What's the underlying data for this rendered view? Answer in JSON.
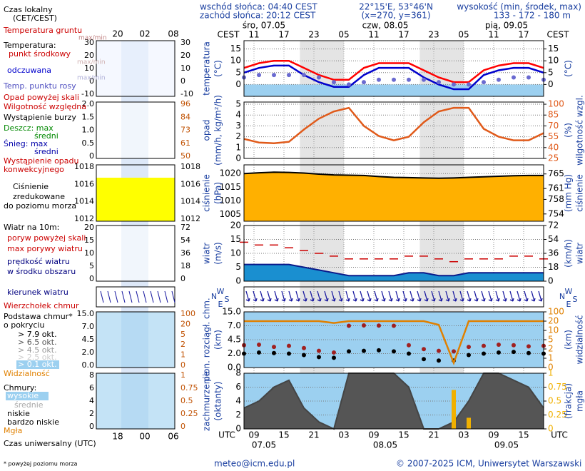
{
  "header": {
    "sunrise": "wschód słońca: 04:40 CEST",
    "sunset": "zachód słońca: 20:12 CEST",
    "coords": "22°15'E, 53°46'N",
    "grid": "(x=270, y=361)",
    "height_label": "wysokość (min, środek, max)",
    "height_values": "133 - 172 - 180 m"
  },
  "time_axis": {
    "xlim": [
      9,
      69
    ],
    "local_zone": "CEST",
    "utc_zone": "UTC",
    "local_dates": [
      "śro, 07.05",
      "czw, 08.05",
      "pią, 09.05"
    ],
    "utc_dates": [
      "07.05",
      "08.05",
      "09.05"
    ],
    "local_ticks": [
      {
        "value": 11,
        "label": "11"
      },
      {
        "value": 17,
        "label": "17"
      },
      {
        "value": 23,
        "label": "23"
      },
      {
        "value": 29,
        "label": "05"
      },
      {
        "value": 35,
        "label": "11"
      },
      {
        "value": 41,
        "label": "17"
      },
      {
        "value": 47,
        "label": "23"
      },
      {
        "value": 53,
        "label": "05"
      },
      {
        "value": 59,
        "label": "11"
      },
      {
        "value": 65,
        "label": "17"
      }
    ],
    "utc_ticks": [
      {
        "value": 11,
        "label": "09"
      },
      {
        "value": 17,
        "label": "15"
      },
      {
        "value": 23,
        "label": "21"
      },
      {
        "value": 29,
        "label": "03"
      },
      {
        "value": 35,
        "label": "09"
      },
      {
        "value": 41,
        "label": "15"
      },
      {
        "value": 47,
        "label": "21"
      },
      {
        "value": 53,
        "label": "03"
      },
      {
        "value": 59,
        "label": "09"
      },
      {
        "value": 65,
        "label": "15"
      }
    ],
    "nights": [
      [
        20.2,
        29
      ],
      [
        44.2,
        53
      ]
    ],
    "hours": [
      9,
      12,
      15,
      18,
      21,
      24,
      27,
      30,
      33,
      36,
      39,
      42,
      45,
      48,
      51,
      54,
      57,
      60,
      63,
      66,
      69
    ]
  },
  "panels": [
    {
      "name": "temperature",
      "left_label": [
        "temperatura",
        "(°C)"
      ],
      "right_label": [
        "(°C)"
      ],
      "ylim": [
        -5,
        18.5
      ],
      "yticks": [
        0,
        5,
        10,
        15
      ],
      "y2lim": [
        -5,
        18.5
      ],
      "y2ticks": [
        0,
        5,
        10,
        15
      ],
      "series": [
        {
          "name": "temperatura",
          "color": "#ff0000",
          "style": "line",
          "values": [
            7,
            9,
            10,
            10,
            7,
            4,
            2,
            2,
            7,
            9,
            9,
            9,
            6,
            3,
            1,
            1,
            6,
            8,
            9,
            9,
            7
          ]
        },
        {
          "name": "odczuwana",
          "color": "#0000cc",
          "style": "line",
          "values": [
            5,
            7,
            8,
            8,
            4,
            1,
            -1,
            -1,
            4,
            7,
            7,
            7,
            3,
            0,
            -2,
            -2,
            4,
            6,
            7,
            7,
            5
          ]
        },
        {
          "name": "punkt rosy",
          "color": "#6a6ad0",
          "style": "dots",
          "values": [
            3,
            4,
            4,
            4,
            4,
            3,
            1,
            0,
            1,
            2,
            2,
            2,
            2,
            1,
            0,
            0,
            1,
            2,
            3,
            3,
            2
          ]
        }
      ]
    },
    {
      "name": "precipitation",
      "left_label": [
        "opad",
        "(mm/h, kg/m²/h)"
      ],
      "right_label": [
        "(%)",
        "wilgotność wzgl."
      ],
      "ylim": [
        0,
        5.2
      ],
      "yticks": [
        0,
        1,
        2,
        3,
        4,
        5
      ],
      "y2lim": [
        25,
        103
      ],
      "y2ticks": [
        25,
        40,
        55,
        70,
        85,
        100
      ],
      "series": [
        {
          "name": "wilgotność",
          "color": "#e05a1a",
          "style": "line",
          "axis": "y2",
          "values": [
            52,
            47,
            46,
            48,
            65,
            80,
            90,
            95,
            70,
            56,
            50,
            55,
            75,
            90,
            95,
            95,
            66,
            55,
            50,
            50,
            60
          ]
        }
      ]
    },
    {
      "name": "pressure",
      "left_label": [
        "ciśnienie",
        "(hPa)"
      ],
      "right_label": [
        "(mm Hg)",
        "ciśnienie"
      ],
      "ylim": [
        1002.5,
        1023.2
      ],
      "yticks": [
        1005,
        1010,
        1015,
        1020
      ],
      "y2lim": [
        752,
        767.5
      ],
      "y2ticks": [
        754,
        758,
        761,
        765
      ],
      "series": [
        {
          "name": "ciśnienie",
          "color": "#000000",
          "style": "area",
          "fill": "#ffb000",
          "values": [
            1020,
            1020.3,
            1020.5,
            1020.4,
            1020.2,
            1019.8,
            1019.5,
            1019.4,
            1019.3,
            1018.9,
            1018.6,
            1018.5,
            1018.4,
            1018.3,
            1018.4,
            1018.6,
            1018.8,
            1019,
            1019.2,
            1019.3,
            1019.3
          ]
        }
      ]
    },
    {
      "name": "wind",
      "left_label": [
        "wiatr",
        "(m/s)"
      ],
      "right_label": [
        "(km/h)",
        "wiatr"
      ],
      "ylim": [
        0,
        20
      ],
      "yticks": [
        0,
        5,
        10,
        15,
        20
      ],
      "y2lim": [
        0,
        72
      ],
      "y2ticks": [
        0,
        18,
        36,
        54,
        72
      ],
      "series": [
        {
          "name": "prędkość",
          "color": "#0a1a8a",
          "style": "area",
          "fill": "#1a8fd0",
          "values": [
            6,
            6,
            6,
            6,
            5,
            4,
            3,
            2,
            2,
            2,
            2,
            3,
            3,
            2,
            2,
            3,
            3,
            3,
            3,
            3,
            3
          ]
        },
        {
          "name": "porywy",
          "color": "#cc0000",
          "style": "dashes",
          "values": [
            14,
            13,
            13,
            12,
            11,
            10,
            9,
            8,
            8,
            8,
            8,
            9,
            9,
            8,
            7,
            8,
            8,
            8,
            9,
            9,
            8
          ]
        }
      ]
    },
    {
      "name": "direction",
      "left_label": [
        "W",
        "N",
        "S",
        "E"
      ],
      "right_label": [
        "W",
        "N",
        "S",
        "E"
      ]
    },
    {
      "name": "clouds",
      "piecewise": true,
      "left_label": [
        "pion. rozciągł. chm.",
        "(km)"
      ],
      "right_label": [
        "(km)",
        "widzialność"
      ],
      "ylim": [
        0,
        15
      ],
      "yticks": [
        {
          "value": 0,
          "label": "0.0"
        },
        {
          "value": 2,
          "label": "2.0"
        },
        {
          "value": 4.5,
          "label": "4.5"
        },
        {
          "value": 7,
          "label": "7.0"
        },
        {
          "value": 15,
          "label": "15.0"
        }
      ],
      "y2lim": [
        0,
        100
      ],
      "y2ticks": [
        0,
        1,
        2,
        5,
        10,
        20,
        100
      ],
      "series": [
        {
          "name": "wierzchołek",
          "color": "#a02020",
          "style": "dots",
          "values": [
            3.5,
            3.6,
            3.2,
            3.4,
            3,
            2.5,
            2.2,
            7,
            7.2,
            7.1,
            7,
            3.5,
            2.8,
            2.5,
            2.4,
            3.2,
            3.4,
            3.6,
            3.5,
            3.3,
            3.4
          ]
        },
        {
          "name": "podstawa",
          "color": "#000000",
          "style": "dots",
          "values": [
            2,
            2.2,
            2.1,
            2,
            1.8,
            1.5,
            1.4,
            2.4,
            2.5,
            2.6,
            2.4,
            2,
            1.2,
            1,
            1,
            1.8,
            2,
            2.2,
            2.3,
            2.1,
            2
          ]
        },
        {
          "name": "widzialność",
          "color": "#e08000",
          "style": "line",
          "axis": "y2",
          "values": [
            20,
            20,
            20,
            20,
            20,
            20,
            18,
            20,
            20,
            20,
            20,
            20,
            20,
            16,
            0.5,
            20,
            20,
            20,
            20,
            20,
            20
          ]
        }
      ]
    },
    {
      "name": "cover",
      "left_label": [
        "zachmurzenie",
        "(oktanty)"
      ],
      "right_label": [
        "(frakcja)",
        "mgła"
      ],
      "ylim": [
        0,
        8
      ],
      "yticks": [
        0,
        2,
        4,
        6,
        8
      ],
      "y2lim": [
        0,
        1
      ],
      "y2ticks": [
        0,
        0.25,
        0.5,
        0.75,
        1
      ],
      "series": [
        {
          "name": "zachmurzenie",
          "color": "#444444",
          "style": "area",
          "fill": "#555555",
          "values": [
            3,
            4,
            6,
            7,
            3,
            1,
            0,
            8,
            8,
            8,
            8,
            6,
            0,
            0,
            1,
            4,
            8,
            8,
            7,
            6,
            3
          ]
        },
        {
          "name": "mgła",
          "color": "#f0b000",
          "style": "bars",
          "axis": "y2",
          "values": [
            0,
            0,
            0,
            0,
            0,
            0,
            0,
            0,
            0,
            0,
            0,
            0,
            0,
            0,
            0.7,
            0.2,
            0,
            0,
            0,
            0,
            0
          ]
        }
      ]
    }
  ],
  "mini": {
    "top_ticks": [
      "20",
      "02",
      "08"
    ],
    "bottom_ticks": [
      "18",
      "00",
      "06"
    ],
    "panels": [
      {
        "left": [
          "30",
          "20",
          "10",
          "0",
          "-10"
        ],
        "right": [
          "30",
          "20",
          "10",
          "0",
          "-10"
        ]
      },
      {
        "left": [
          "2.0",
          "1.5",
          "1.0",
          "0.5",
          "0"
        ],
        "right": [
          "96",
          "84",
          "73",
          "61",
          "50"
        ]
      },
      {
        "left": [
          "1018",
          "1016",
          "1014",
          "1012"
        ],
        "right": [
          "1018",
          "1016",
          "1014",
          "1012"
        ]
      },
      {
        "left": [
          "20",
          "15",
          "10",
          "5",
          "0"
        ],
        "right": [
          "72",
          "54",
          "36",
          "18",
          "0"
        ]
      },
      null,
      {
        "left": [
          "15.0",
          "7.0",
          "4.5",
          "2.0",
          "0.0"
        ],
        "right": [
          "100",
          "20",
          "5",
          "2",
          "1",
          "0"
        ]
      },
      {
        "left": [
          "8",
          "6",
          "4",
          "2",
          "0"
        ],
        "right": [
          "1",
          "0.75",
          "0.5",
          "0.25",
          "0"
        ]
      }
    ]
  },
  "legend": [
    {
      "text": "Czas lokalny",
      "color": "#000"
    },
    {
      "text": "(CET/CEST)",
      "color": "#000"
    },
    {
      "text": "Temperatura gruntu",
      "color": "#cc0000"
    },
    {
      "text": "max/min",
      "color": "#c08080"
    },
    {
      "text": "Temperatura:",
      "color": "#000"
    },
    {
      "text": "punkt środkowy",
      "color": "#cc0000"
    },
    {
      "text": "max/min",
      "color": "#d0b0b0"
    },
    {
      "text": "odczuwana",
      "color": "#0000cc"
    },
    {
      "text": "max/min",
      "color": "#b0b0d8"
    },
    {
      "text": "Temp. punktu rosy",
      "color": "#5050c0"
    },
    {
      "text": "Opad powyżej skali",
      "color": "#cc0000"
    },
    {
      "text": "Wilgotność względna",
      "color": "#cc0000"
    },
    {
      "text": "Wystąpienie burzy",
      "color": "#000"
    },
    {
      "text": "Deszcz: max",
      "color": "#008800"
    },
    {
      "text": "średni",
      "color": "#008800"
    },
    {
      "text": "Śnieg: max",
      "color": "#0000aa"
    },
    {
      "text": "średni",
      "color": "#0000aa"
    },
    {
      "text": "Wystąpienie opadu",
      "color": "#cc0000"
    },
    {
      "text": "konwekcyjnego",
      "color": "#cc0000"
    },
    {
      "text": "Ciśnienie",
      "color": "#000"
    },
    {
      "text": "zredukowane",
      "color": "#000"
    },
    {
      "text": "do poziomu morza",
      "color": "#000"
    },
    {
      "text": "Wiatr na 10m:",
      "color": "#000"
    },
    {
      "text": "poryw powyżej skali",
      "color": "#cc0000"
    },
    {
      "text": "max porywy wiatru",
      "color": "#cc0000"
    },
    {
      "text": "prędkość wiatru",
      "color": "#000080"
    },
    {
      "text": "w środku obszaru",
      "color": "#000080"
    },
    {
      "text": "kierunek wiatru",
      "color": "#000080"
    },
    {
      "text": "Wierzchołek chmur",
      "color": "#cc0000"
    },
    {
      "text": "Podstawa chmur*",
      "color": "#000"
    },
    {
      "text": "o pokryciu",
      "color": "#000"
    },
    {
      "text": "> 7.9 okt.",
      "color": "#000"
    },
    {
      "text": "> 6.5 okt.",
      "color": "#555"
    },
    {
      "text": "> 4.5 okt.",
      "color": "#999"
    },
    {
      "text": "> 2.5 okt.",
      "color": "#ccc"
    },
    {
      "text": "> 0.1 okt.",
      "color": "#fff"
    },
    {
      "text": "Widzialność",
      "color": "#e08000"
    },
    {
      "text": "Chmury:",
      "color": "#000"
    },
    {
      "text": "wysokie",
      "color": "#fff"
    },
    {
      "text": "średnie",
      "color": "#aaa"
    },
    {
      "text": "niskie",
      "color": "#000"
    },
    {
      "text": "bardzo niskie",
      "color": "#000"
    },
    {
      "text": "Mgła",
      "color": "#e08000"
    },
    {
      "text": "Czas uniwersalny (UTC)",
      "color": "#000"
    }
  ],
  "footer": {
    "note": "* powyżej poziomu morza",
    "email": "meteo@icm.edu.pl",
    "copyright": "© 2007-2025 ICM, Uniwersytet Warszawski"
  }
}
